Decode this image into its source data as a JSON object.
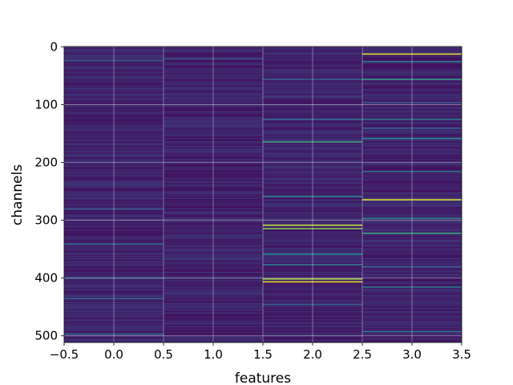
{
  "chart_data": {
    "type": "heatmap",
    "title": "",
    "xlabel": "features",
    "ylabel": "channels",
    "xlim": [
      -0.5,
      3.5
    ],
    "ylim": [
      511.5,
      -0.5
    ],
    "n_rows": 512,
    "n_cols": 4,
    "x_ticks": [
      -0.5,
      0.0,
      0.5,
      1.0,
      1.5,
      2.0,
      2.5,
      3.0,
      3.5
    ],
    "x_tick_labels": [
      "−0.5",
      "0.0",
      "0.5",
      "1.0",
      "1.5",
      "2.0",
      "2.5",
      "3.0",
      "3.5"
    ],
    "y_ticks": [
      0,
      100,
      200,
      300,
      400,
      500
    ],
    "y_tick_labels": [
      "0",
      "100",
      "200",
      "300",
      "400",
      "500"
    ],
    "grid": true,
    "colormap": "viridis",
    "background_value": 0.05,
    "bright_cells": [
      {
        "col": 0,
        "row": 23,
        "value": 0.3
      },
      {
        "col": 0,
        "row": 280,
        "value": 0.3
      },
      {
        "col": 0,
        "row": 341,
        "value": 0.35
      },
      {
        "col": 0,
        "row": 400,
        "value": 0.3
      },
      {
        "col": 0,
        "row": 435,
        "value": 0.35
      },
      {
        "col": 0,
        "row": 496,
        "value": 0.3
      },
      {
        "col": 1,
        "row": 20,
        "value": 0.25
      },
      {
        "col": 1,
        "row": 400,
        "value": 0.2
      },
      {
        "col": 2,
        "row": 56,
        "value": 0.3
      },
      {
        "col": 2,
        "row": 125,
        "value": 0.35
      },
      {
        "col": 2,
        "row": 164,
        "value": 0.6
      },
      {
        "col": 2,
        "row": 258,
        "value": 0.45
      },
      {
        "col": 2,
        "row": 308,
        "value": 0.9
      },
      {
        "col": 2,
        "row": 314,
        "value": 0.8
      },
      {
        "col": 2,
        "row": 358,
        "value": 0.45
      },
      {
        "col": 2,
        "row": 376,
        "value": 0.4
      },
      {
        "col": 2,
        "row": 401,
        "value": 0.85
      },
      {
        "col": 2,
        "row": 406,
        "value": 0.95
      },
      {
        "col": 2,
        "row": 445,
        "value": 0.3
      },
      {
        "col": 3,
        "row": 12,
        "value": 0.95
      },
      {
        "col": 3,
        "row": 25,
        "value": 0.4
      },
      {
        "col": 3,
        "row": 56,
        "value": 0.55
      },
      {
        "col": 3,
        "row": 96,
        "value": 0.3
      },
      {
        "col": 3,
        "row": 125,
        "value": 0.4
      },
      {
        "col": 3,
        "row": 140,
        "value": 0.35
      },
      {
        "col": 3,
        "row": 158,
        "value": 0.45
      },
      {
        "col": 3,
        "row": 215,
        "value": 0.4
      },
      {
        "col": 3,
        "row": 264,
        "value": 0.95
      },
      {
        "col": 3,
        "row": 296,
        "value": 0.45
      },
      {
        "col": 3,
        "row": 322,
        "value": 0.6
      },
      {
        "col": 3,
        "row": 380,
        "value": 0.3
      },
      {
        "col": 3,
        "row": 415,
        "value": 0.4
      },
      {
        "col": 3,
        "row": 492,
        "value": 0.4
      }
    ]
  }
}
